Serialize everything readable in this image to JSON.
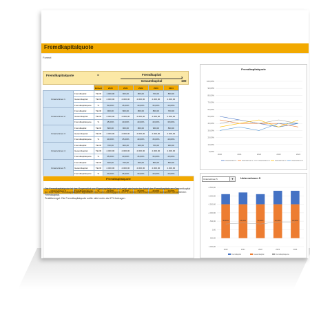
{
  "sheet_title": "Fremdkapitalquote",
  "formel_label": "Formel",
  "formula": {
    "label": "Fremdkapitalquote",
    "equals": "=",
    "numerator": "Fremdkapital",
    "denominator": "Gesamtkapital",
    "multiplier": "× 100"
  },
  "table": {
    "header": [
      "Einheit",
      "2020",
      "2021",
      "2022",
      "2023",
      "2024"
    ],
    "groups": [
      {
        "name": "Unternehmen 1",
        "rows": [
          {
            "label": "Fremdkapital",
            "unit": "TEUR",
            "values": [
              "1.000,00",
              "900,00",
              "800,00",
              "700,00",
              "800,00"
            ]
          },
          {
            "label": "Gesamtkapital",
            "unit": "TEUR",
            "values": [
              "2.000,00",
              "2.000,00",
              "2.000,00",
              "2.000,00",
              "2.000,00"
            ]
          },
          {
            "label": "Fremdkapitalquote",
            "unit": "%",
            "values": [
              "50,00%",
              "45,00%",
              "40,00%",
              "35,00%",
              "40,00%"
            ]
          }
        ]
      },
      {
        "name": "Unternehmen 2",
        "rows": [
          {
            "label": "Fremdkapital",
            "unit": "TEUR",
            "values": [
              "900,00",
              "800,00",
              "800,00",
              "800,00",
              "700,00"
            ]
          },
          {
            "label": "Gesamtkapital",
            "unit": "TEUR",
            "values": [
              "2.000,00",
              "2.000,00",
              "2.000,00",
              "2.000,00",
              "2.000,00"
            ]
          },
          {
            "label": "Fremdkapitalquote",
            "unit": "%",
            "values": [
              "45,00%",
              "40,00%",
              "40,00%",
              "40,00%",
              "35,00%"
            ]
          }
        ]
      },
      {
        "name": "Unternehmen 3",
        "rows": [
          {
            "label": "Fremdkapital",
            "unit": "TEUR",
            "values": [
              "800,00",
              "900,00",
              "800,00",
              "900,00",
              "800,00"
            ]
          },
          {
            "label": "Gesamtkapital",
            "unit": "TEUR",
            "values": [
              "2.000,00",
              "2.000,00",
              "2.000,00",
              "2.000,00",
              "2.000,00"
            ]
          },
          {
            "label": "Fremdkapitalquote",
            "unit": "%",
            "values": [
              "40,00%",
              "45,00%",
              "40,00%",
              "45,00%",
              "40,00%"
            ]
          }
        ]
      },
      {
        "name": "Unternehmen 4",
        "rows": [
          {
            "label": "Fremdkapital",
            "unit": "TEUR",
            "values": [
              "700,00",
              "800,00",
              "900,00",
              "700,00",
              "900,00"
            ]
          },
          {
            "label": "Gesamtkapital",
            "unit": "TEUR",
            "values": [
              "2.000,00",
              "2.000,00",
              "2.000,00",
              "2.000,00",
              "2.000,00"
            ]
          },
          {
            "label": "Fremdkapitalquote",
            "unit": "%",
            "values": [
              "35,00%",
              "40,00%",
              "45,00%",
              "35,00%",
              "45,00%"
            ]
          }
        ]
      },
      {
        "name": "Unternehmen 5",
        "rows": [
          {
            "label": "Fremdkapital",
            "unit": "TEUR",
            "values": [
              "600,00",
              "700,00",
              "600,00",
              "800,00",
              "800,00"
            ]
          },
          {
            "label": "Gesamtkapital",
            "unit": "TEUR",
            "values": [
              "2.000,00",
              "2.000,00",
              "2.000,00",
              "2.000,00",
              "2.000,00"
            ]
          },
          {
            "label": "Fremdkapitalquote",
            "unit": "%",
            "values": [
              "30,00%",
              "35,00%",
              "30,00%",
              "40,00%",
              "40,00%"
            ]
          }
        ]
      }
    ],
    "total": {
      "label": "Unternehmen 5",
      "name": "Fremdkapitalquote",
      "unit": "%",
      "values": [
        "30,00%",
        "35,00%",
        "30,00%",
        "40,00%",
        "40,00%"
      ]
    }
  },
  "text_panel": {
    "header": "Fremdkapitalquote",
    "body": "Die Fremdkapitalquote ist das Gegenstück zur Eigenkapitalquote und zeigt, wie hoch der Anteil des Fremdkapitals am Gesamtkapital ist. Eine hohe Fremdkapitalquote signalisiert eine hohe Abhängigkeit von FK-Gebern und erschwert eine Aufnahme von weiterem Fremdkapital.",
    "rule": "Praktikerregel: Die Fremdkapitalquote sollte nicht mehr als 67% betragen."
  },
  "dropdown": {
    "value": "Unternehmen 5"
  },
  "chart_data": [
    {
      "type": "line",
      "title": "Fremdkapitalquote",
      "x": [
        "2020",
        "2021",
        "2022",
        "2023",
        "2024"
      ],
      "ylim": [
        0,
        100
      ],
      "yticks": [
        "0,00%",
        "10,00%",
        "20,00%",
        "30,00%",
        "40,00%",
        "50,00%",
        "60,00%",
        "70,00%",
        "80,00%",
        "90,00%",
        "100,00%"
      ],
      "series": [
        {
          "name": "Unternehmen 1",
          "color": "#4472c4",
          "values": [
            50,
            45,
            40,
            35,
            40
          ]
        },
        {
          "name": "Unternehmen 2",
          "color": "#ed7d31",
          "values": [
            45,
            40,
            40,
            40,
            35
          ]
        },
        {
          "name": "Unternehmen 3",
          "color": "#a5a5a5",
          "values": [
            40,
            45,
            40,
            45,
            40
          ]
        },
        {
          "name": "Unternehmen 4",
          "color": "#ffc000",
          "values": [
            35,
            40,
            45,
            35,
            45
          ]
        },
        {
          "name": "Unternehmen 5",
          "color": "#5b9bd5",
          "values": [
            30,
            35,
            30,
            40,
            40
          ]
        }
      ],
      "legend": "bottom"
    },
    {
      "type": "bar",
      "title": "Unternehmen 5",
      "categories": [
        "2020",
        "2021",
        "2022",
        "2023",
        "2024"
      ],
      "ylim": [
        -2500,
        1000
      ],
      "yticks": [
        "-2.500,00",
        "-2.000,00",
        "-1.500,00",
        "-1.000,00",
        "-500,00",
        "0,00",
        "500,00",
        "1.000,00"
      ],
      "series": [
        {
          "name": "Fremdkapital",
          "color": "#4472c4",
          "values": [
            600,
            700,
            600,
            800,
            800
          ]
        },
        {
          "name": "Gesamtkapital",
          "color": "#ed7d31",
          "values": [
            -2000,
            -2000,
            -2000,
            -2000,
            -2000
          ]
        },
        {
          "name": "Fremdkapitalquote",
          "color": "#a5a5a5",
          "values": [
            30,
            35,
            30,
            40,
            40
          ]
        }
      ],
      "data_labels": [
        "30,00%",
        "35,00%",
        "30,00%",
        "40,00%",
        "40,00%"
      ],
      "legend": "bottom"
    }
  ]
}
